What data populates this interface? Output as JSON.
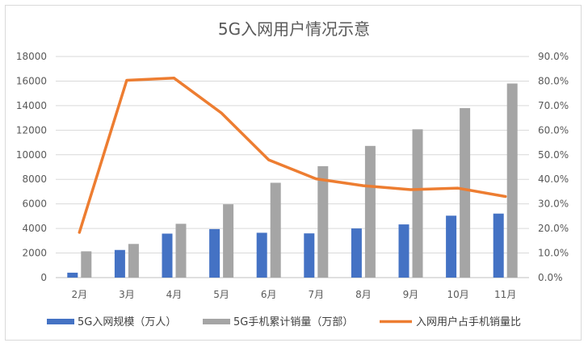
{
  "chart_data": {
    "type": "bar",
    "title": "5G入网用户情况示意",
    "categories": [
      "2月",
      "3月",
      "4月",
      "5月",
      "6月",
      "7月",
      "8月",
      "9月",
      "10月",
      "11月"
    ],
    "y_left": {
      "ylim": [
        0,
        18000
      ],
      "ticks": [
        "0",
        "2000",
        "4000",
        "6000",
        "8000",
        "10000",
        "12000",
        "14000",
        "16000",
        "18000"
      ]
    },
    "y_right": {
      "ylim": [
        0,
        90
      ],
      "ticks": [
        "0.0%",
        "10.0%",
        "20.0%",
        "30.0%",
        "40.0%",
        "50.0%",
        "60.0%",
        "70.0%",
        "80.0%",
        "90.0%"
      ]
    },
    "grid": true,
    "legend_position": "bottom",
    "series": [
      {
        "name": "5G入网规模（万人）",
        "type": "bar",
        "axis": "left",
        "color": "#4472c4",
        "values": [
          400,
          2250,
          3580,
          3950,
          3650,
          3600,
          4000,
          4330,
          5040,
          5210
        ]
      },
      {
        "name": "5G手机累计销量（万部）",
        "type": "bar",
        "axis": "left",
        "color": "#a5a5a5",
        "values": [
          2140,
          2740,
          4380,
          5970,
          7720,
          9070,
          10720,
          12070,
          13800,
          15800
        ]
      },
      {
        "name": "入网用户占手机销量比",
        "type": "line",
        "axis": "right",
        "color": "#ed7d31",
        "values": [
          18.4,
          80.3,
          81.2,
          67.0,
          47.9,
          40.2,
          37.4,
          35.8,
          36.4,
          33.0
        ]
      }
    ]
  }
}
